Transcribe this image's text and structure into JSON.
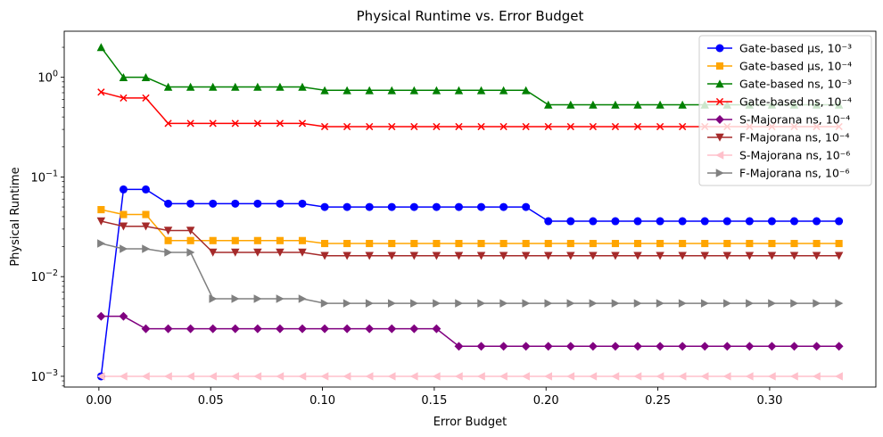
{
  "chart_data": {
    "type": "line",
    "title": "Physical Runtime vs. Error Budget",
    "xlabel": "Error Budget",
    "ylabel": "Physical Runtime",
    "yscale": "log",
    "xlim": [
      -0.0155,
      0.3475
    ],
    "ylim": [
      0.00078,
      2.9
    ],
    "xticks": [
      0.0,
      0.05,
      0.1,
      0.15,
      0.2,
      0.25,
      0.3
    ],
    "xtick_labels": [
      "0.00",
      "0.05",
      "0.10",
      "0.15",
      "0.20",
      "0.25",
      "0.30"
    ],
    "yticks": [
      0.001,
      0.01,
      0.1,
      1
    ],
    "ytick_labels": [
      {
        "base": "10",
        "exp": "−3"
      },
      {
        "base": "10",
        "exp": "−2"
      },
      {
        "base": "10",
        "exp": "−1"
      },
      {
        "base": "10",
        "exp": "0"
      }
    ],
    "grid": false,
    "legend_position": "top-right",
    "x": [
      0.001,
      0.011,
      0.021,
      0.031,
      0.041,
      0.051,
      0.061,
      0.071,
      0.081,
      0.091,
      0.101,
      0.111,
      0.121,
      0.131,
      0.141,
      0.151,
      0.161,
      0.171,
      0.181,
      0.191,
      0.201,
      0.211,
      0.221,
      0.231,
      0.241,
      0.251,
      0.261,
      0.271,
      0.281,
      0.291,
      0.301,
      0.311,
      0.321,
      0.331
    ],
    "series": [
      {
        "name": "Gate-based μs, 10⁻³",
        "color": "#0000ff",
        "marker": "circle",
        "values": [
          0.001,
          0.075,
          0.075,
          0.054,
          0.054,
          0.054,
          0.054,
          0.054,
          0.054,
          0.054,
          0.05,
          0.05,
          0.05,
          0.05,
          0.05,
          0.05,
          0.05,
          0.05,
          0.05,
          0.05,
          0.036,
          0.036,
          0.036,
          0.036,
          0.036,
          0.036,
          0.036,
          0.036,
          0.036,
          0.036,
          0.036,
          0.036,
          0.036,
          0.036
        ]
      },
      {
        "name": "Gate-based μs, 10⁻⁴",
        "color": "#ffa500",
        "marker": "square",
        "values": [
          0.047,
          0.042,
          0.042,
          0.023,
          0.023,
          0.023,
          0.023,
          0.023,
          0.023,
          0.023,
          0.0215,
          0.0215,
          0.0215,
          0.0215,
          0.0215,
          0.0215,
          0.0215,
          0.0215,
          0.0215,
          0.0215,
          0.0215,
          0.0215,
          0.0215,
          0.0215,
          0.0215,
          0.0215,
          0.0215,
          0.0215,
          0.0215,
          0.0215,
          0.0215,
          0.0215,
          0.0215,
          0.0215
        ]
      },
      {
        "name": "Gate-based ns, 10⁻³",
        "color": "#008000",
        "marker": "triangle-up",
        "values": [
          2.0,
          1.0,
          1.0,
          0.8,
          0.8,
          0.8,
          0.8,
          0.8,
          0.8,
          0.8,
          0.74,
          0.74,
          0.74,
          0.74,
          0.74,
          0.74,
          0.74,
          0.74,
          0.74,
          0.74,
          0.53,
          0.53,
          0.53,
          0.53,
          0.53,
          0.53,
          0.53,
          0.53,
          0.53,
          0.53,
          0.53,
          0.53,
          0.53,
          0.53
        ]
      },
      {
        "name": "Gate-based ns, 10⁻⁴",
        "color": "#ff0000",
        "marker": "x",
        "values": [
          0.71,
          0.62,
          0.62,
          0.345,
          0.345,
          0.345,
          0.345,
          0.345,
          0.345,
          0.345,
          0.32,
          0.32,
          0.32,
          0.32,
          0.32,
          0.32,
          0.32,
          0.32,
          0.32,
          0.32,
          0.32,
          0.32,
          0.32,
          0.32,
          0.32,
          0.32,
          0.32,
          0.32,
          0.32,
          0.32,
          0.32,
          0.32,
          0.32,
          0.32
        ]
      },
      {
        "name": "S-Majorana ns, 10⁻⁴",
        "color": "#800080",
        "marker": "diamond",
        "values": [
          0.004,
          0.004,
          0.003,
          0.003,
          0.003,
          0.003,
          0.003,
          0.003,
          0.003,
          0.003,
          0.003,
          0.003,
          0.003,
          0.003,
          0.003,
          0.003,
          0.002,
          0.002,
          0.002,
          0.002,
          0.002,
          0.002,
          0.002,
          0.002,
          0.002,
          0.002,
          0.002,
          0.002,
          0.002,
          0.002,
          0.002,
          0.002,
          0.002,
          0.002
        ]
      },
      {
        "name": "F-Majorana ns, 10⁻⁴",
        "color": "#a52a2a",
        "marker": "triangle-down",
        "values": [
          0.036,
          0.032,
          0.032,
          0.029,
          0.029,
          0.0175,
          0.0175,
          0.0175,
          0.0175,
          0.0175,
          0.0162,
          0.0162,
          0.0162,
          0.0162,
          0.0162,
          0.0162,
          0.0162,
          0.0162,
          0.0162,
          0.0162,
          0.0162,
          0.0162,
          0.0162,
          0.0162,
          0.0162,
          0.0162,
          0.0162,
          0.0162,
          0.0162,
          0.0162,
          0.0162,
          0.0162,
          0.0162,
          0.0162
        ]
      },
      {
        "name": "S-Majorana ns, 10⁻⁶",
        "color": "#ffc0cb",
        "marker": "triangle-left",
        "values": [
          0.001,
          0.001,
          0.001,
          0.001,
          0.001,
          0.001,
          0.001,
          0.001,
          0.001,
          0.001,
          0.001,
          0.001,
          0.001,
          0.001,
          0.001,
          0.001,
          0.001,
          0.001,
          0.001,
          0.001,
          0.001,
          0.001,
          0.001,
          0.001,
          0.001,
          0.001,
          0.001,
          0.001,
          0.001,
          0.001,
          0.001,
          0.001,
          0.001,
          0.001
        ]
      },
      {
        "name": "F-Majorana ns, 10⁻⁶",
        "color": "#808080",
        "marker": "triangle-right",
        "values": [
          0.0215,
          0.019,
          0.019,
          0.0175,
          0.0175,
          0.006,
          0.006,
          0.006,
          0.006,
          0.006,
          0.0054,
          0.0054,
          0.0054,
          0.0054,
          0.0054,
          0.0054,
          0.0054,
          0.0054,
          0.0054,
          0.0054,
          0.0054,
          0.0054,
          0.0054,
          0.0054,
          0.0054,
          0.0054,
          0.0054,
          0.0054,
          0.0054,
          0.0054,
          0.0054,
          0.0054,
          0.0054,
          0.0054
        ]
      }
    ]
  }
}
